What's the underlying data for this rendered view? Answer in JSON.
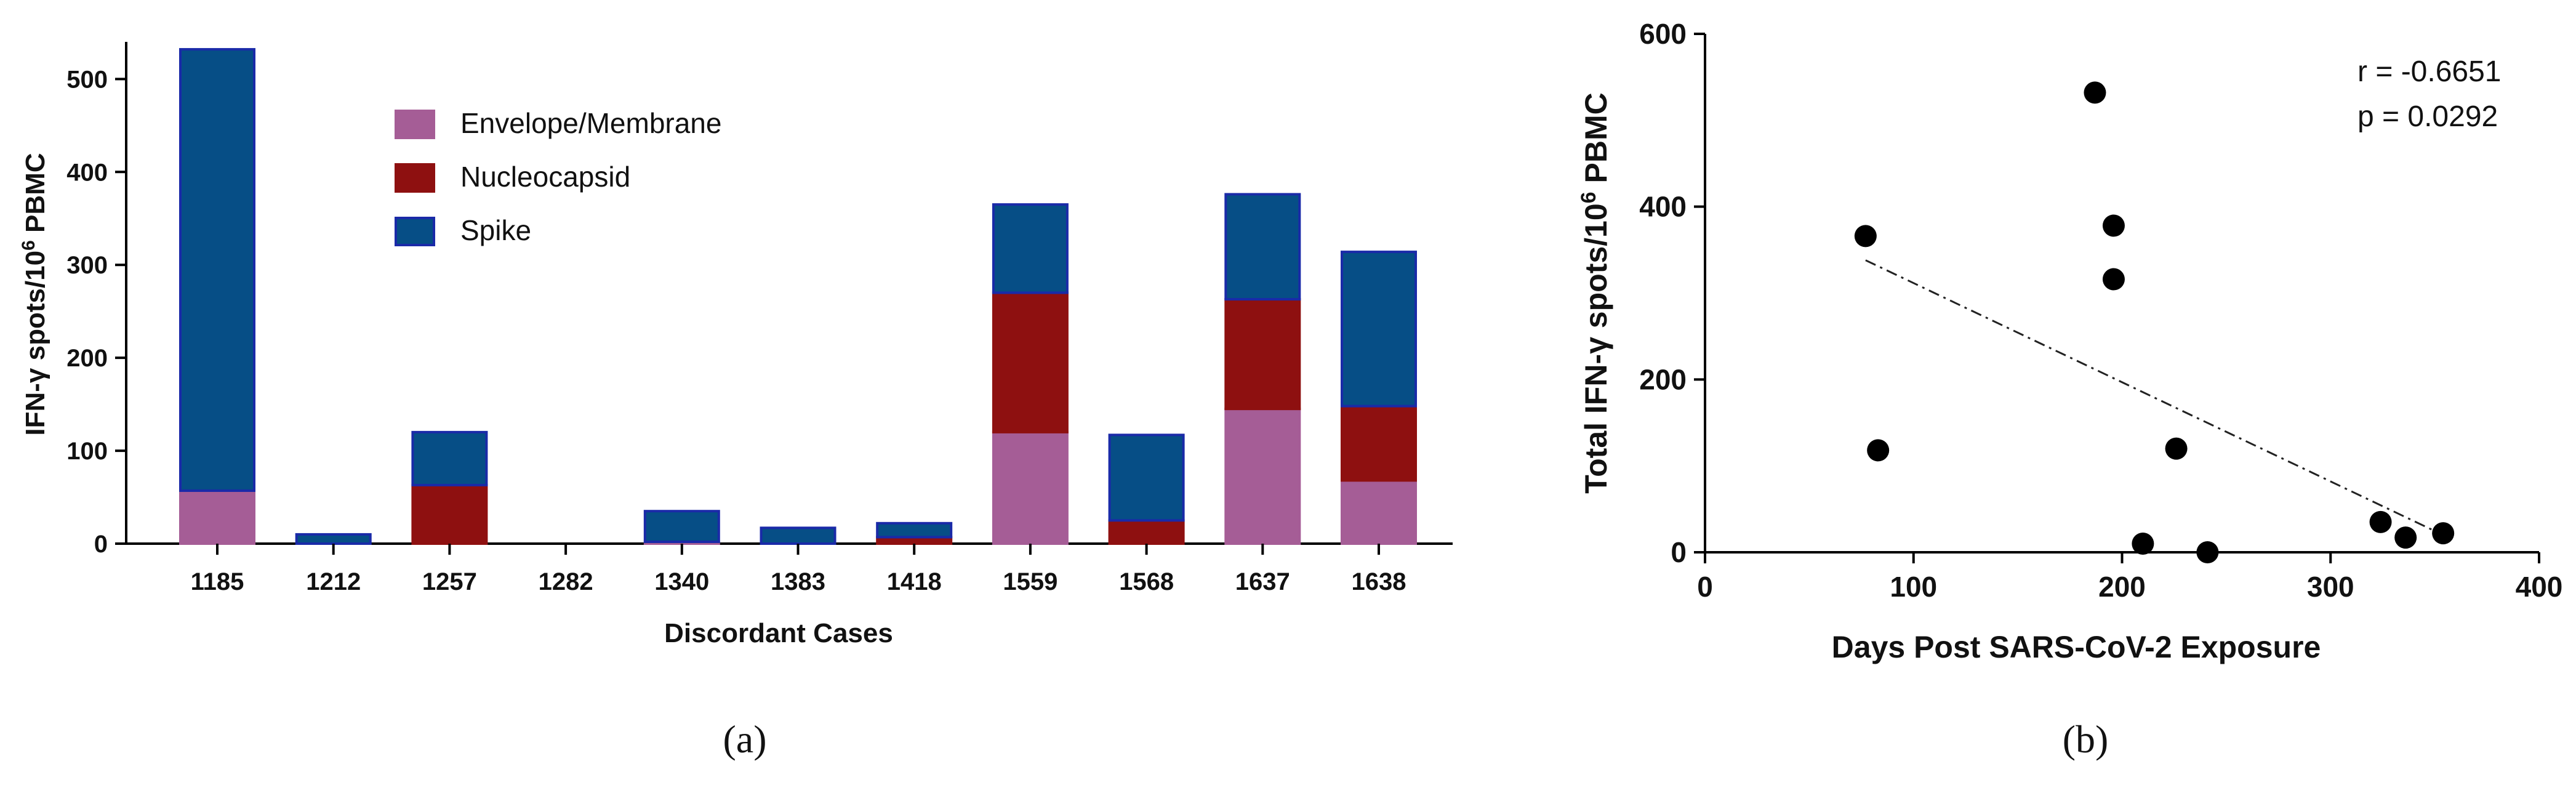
{
  "chart_data": [
    {
      "type": "bar",
      "stacked": true,
      "panel_label": "(a)",
      "xlabel": "Discordant Cases",
      "ylabel_prefix": "IFN-γ spots/10",
      "ylabel_sup": "6",
      "ylabel_suffix": " PBMC",
      "ylim": [
        0,
        540
      ],
      "yticks": [
        "0",
        "100",
        "200",
        "300",
        "400",
        "500"
      ],
      "legend_position": "top-center",
      "categories": [
        "1185",
        "1212",
        "1257",
        "1282",
        "1340",
        "1383",
        "1418",
        "1559",
        "1568",
        "1637",
        "1638"
      ],
      "series": [
        {
          "name": "Envelope/Membrane",
          "color": "#a55d96",
          "values": [
            57,
            0,
            0,
            0,
            2,
            0,
            0,
            120,
            0,
            145,
            68
          ]
        },
        {
          "name": "Nucleocapsid",
          "color": "#8e1010",
          "values": [
            0,
            0,
            63,
            0,
            0,
            0,
            7,
            150,
            25,
            118,
            80
          ]
        },
        {
          "name": "Spike",
          "color": "#064e86",
          "values": [
            475,
            10,
            57,
            0,
            33,
            17,
            15,
            95,
            92,
            113,
            166
          ]
        }
      ],
      "stroke_colors": {
        "Envelope/Membrane": "#a55d96",
        "Nucleocapsid": "#8e1010",
        "Spike": "#1a2aa8"
      }
    },
    {
      "type": "scatter",
      "panel_label": "(b)",
      "xlabel": "Days Post SARS-CoV-2 Exposure",
      "ylabel_prefix": "Total IFN-γ spots/10",
      "ylabel_sup": "6",
      "ylabel_suffix": " PBMC",
      "xlim": [
        0,
        400
      ],
      "ylim": [
        0,
        600
      ],
      "xticks": [
        "0",
        "100",
        "200",
        "300",
        "400"
      ],
      "yticks": [
        "0",
        "200",
        "400",
        "600"
      ],
      "point_color": "#000000",
      "points": [
        {
          "x": 77,
          "y": 366
        },
        {
          "x": 83,
          "y": 118
        },
        {
          "x": 187,
          "y": 532
        },
        {
          "x": 196,
          "y": 378
        },
        {
          "x": 196,
          "y": 316
        },
        {
          "x": 210,
          "y": 10
        },
        {
          "x": 226,
          "y": 120
        },
        {
          "x": 241,
          "y": 0
        },
        {
          "x": 324,
          "y": 35
        },
        {
          "x": 336,
          "y": 17
        },
        {
          "x": 354,
          "y": 22
        }
      ],
      "regression": {
        "x": [
          77,
          354
        ],
        "y": [
          338,
          20
        ]
      },
      "annotations": [
        "r = -0.6651",
        "p = 0.0292"
      ]
    }
  ]
}
